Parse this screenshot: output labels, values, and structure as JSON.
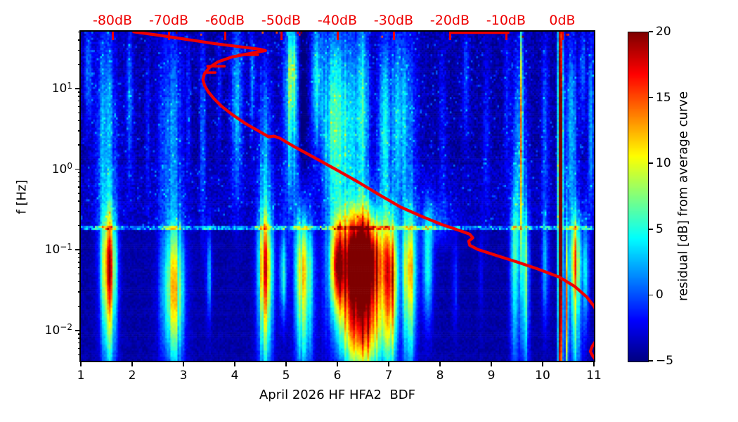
{
  "page": {
    "background": "#ffffff"
  },
  "chart_data": {
    "type": "heatmap",
    "title": "",
    "xlabel": "April 2026 HF HFA2  BDF",
    "ylabel": "f [Hz]",
    "x_range": [
      1,
      11
    ],
    "x_ticks": [
      {
        "v": 1,
        "label": "1"
      },
      {
        "v": 2,
        "label": "2"
      },
      {
        "v": 3,
        "label": "3"
      },
      {
        "v": 4,
        "label": "4"
      },
      {
        "v": 5,
        "label": "5"
      },
      {
        "v": 6,
        "label": "6"
      },
      {
        "v": 7,
        "label": "7"
      },
      {
        "v": 8,
        "label": "8"
      },
      {
        "v": 9,
        "label": "9"
      },
      {
        "v": 10,
        "label": "10"
      },
      {
        "v": 11,
        "label": "11"
      }
    ],
    "y_scale": "log",
    "y_range": [
      0.0042,
      50.8
    ],
    "y_ticks": [
      {
        "f": 10,
        "exp": "1"
      },
      {
        "f": 1,
        "exp": "0"
      },
      {
        "f": 0.1,
        "exp": "−1"
      },
      {
        "f": 0.01,
        "exp": "−2"
      }
    ],
    "grid": false,
    "legend": false,
    "top_axis": {
      "color": "#ee0000",
      "range_db": [
        -85.63,
        5.63
      ],
      "ticks": [
        {
          "v": -80,
          "label": "-80dB"
        },
        {
          "v": -70,
          "label": "-70dB"
        },
        {
          "v": -60,
          "label": "-60dB"
        },
        {
          "v": -50,
          "label": "-50dB"
        },
        {
          "v": -40,
          "label": "-40dB"
        },
        {
          "v": -30,
          "label": "-30dB"
        },
        {
          "v": -20,
          "label": "-20dB"
        },
        {
          "v": -10,
          "label": "-10dB"
        },
        {
          "v": 0,
          "label": "0dB"
        }
      ]
    },
    "colorbar": {
      "label": "residual [dB] from average curve",
      "min": -5,
      "max": 20,
      "colormap": "jet",
      "ticks": [
        {
          "v": 20,
          "label": "20"
        },
        {
          "v": 15,
          "label": "15"
        },
        {
          "v": 10,
          "label": "10"
        },
        {
          "v": 5,
          "label": "5"
        },
        {
          "v": 0,
          "label": "0"
        },
        {
          "v": -5,
          "label": "−5"
        }
      ]
    },
    "heatmap": {
      "seed": 42,
      "nx": 292,
      "ny": 161,
      "base": -4.0,
      "upper_lift": 0.6,
      "hline": {
        "logf": -0.72,
        "halfwidth": 0.026,
        "amp": 4.5,
        "noise": 7
      },
      "noise_upper": 2.4,
      "noise_lower": 1.3,
      "speckle_prob": 0.035,
      "speckle_amp": 3.2,
      "top_dot_prob": 0.012,
      "features": [
        [
          1.15,
          0.05,
          1.2,
          0.5,
          5
        ],
        [
          1.5,
          0.13,
          0.45,
          0.95,
          7
        ],
        [
          1.95,
          0.06,
          0.9,
          0.7,
          4.5
        ],
        [
          2.3,
          0.03,
          0.6,
          0.7,
          3
        ],
        [
          2.75,
          0.16,
          0.5,
          0.9,
          5.5
        ],
        [
          3.1,
          0.03,
          0.8,
          0.6,
          3.5
        ],
        [
          3.38,
          0.04,
          0.5,
          0.9,
          4.5
        ],
        [
          3.7,
          0.03,
          0.9,
          0.5,
          3
        ],
        [
          4.05,
          0.09,
          0.8,
          0.8,
          5.5
        ],
        [
          4.35,
          0.04,
          1.1,
          0.5,
          4.5
        ],
        [
          4.6,
          0.1,
          0.2,
          0.8,
          5.5
        ],
        [
          5.1,
          0.1,
          0.8,
          0.9,
          9
        ],
        [
          5.12,
          0.05,
          1.25,
          0.35,
          5
        ],
        [
          5.32,
          0.05,
          0.9,
          0.7,
          -3
        ],
        [
          5.6,
          0.07,
          1.1,
          0.6,
          9
        ],
        [
          5.9,
          0.12,
          0.6,
          0.9,
          7
        ],
        [
          6.2,
          0.25,
          0.5,
          0.9,
          7.5
        ],
        [
          6.5,
          0.08,
          0.8,
          0.9,
          6
        ],
        [
          6.9,
          0.08,
          0.5,
          0.8,
          6.5
        ],
        [
          7.25,
          0.18,
          0.6,
          0.85,
          7
        ],
        [
          7.9,
          0.25,
          -0.65,
          0.2,
          3
        ],
        [
          8.05,
          0.05,
          0.5,
          0.8,
          2.5
        ],
        [
          8.5,
          0.05,
          1.1,
          0.5,
          3.5
        ],
        [
          8.9,
          0.05,
          0.4,
          0.7,
          2.5
        ],
        [
          9.3,
          0.04,
          0.9,
          0.7,
          3
        ],
        [
          9.55,
          0.1,
          0.3,
          0.9,
          5.5
        ],
        [
          9.59,
          0.013,
          0.55,
          1.1,
          24
        ],
        [
          10.05,
          0.05,
          0.6,
          0.8,
          4
        ],
        [
          10.35,
          0.03,
          -0.3,
          2.6,
          34
        ],
        [
          10.55,
          0.09,
          0.5,
          0.85,
          6
        ],
        [
          10.78,
          0.04,
          1.2,
          0.45,
          4.5
        ],
        [
          10.95,
          0.05,
          0.6,
          0.8,
          5
        ],
        [
          1.55,
          0.1,
          -1.15,
          0.45,
          18
        ],
        [
          1.55,
          0.1,
          -2.0,
          0.5,
          9
        ],
        [
          2.8,
          0.15,
          -1.3,
          0.5,
          11
        ],
        [
          2.8,
          0.15,
          -2.0,
          0.5,
          7
        ],
        [
          3.5,
          0.04,
          -1.3,
          0.4,
          6
        ],
        [
          4.6,
          0.1,
          -1.15,
          0.45,
          16
        ],
        [
          4.6,
          0.1,
          -2.0,
          0.5,
          9
        ],
        [
          4.95,
          0.05,
          -1.3,
          0.4,
          8
        ],
        [
          5.35,
          0.12,
          -1.15,
          0.45,
          13
        ],
        [
          5.35,
          0.12,
          -2.0,
          0.5,
          8
        ],
        [
          6.0,
          0.1,
          -1.2,
          0.4,
          14
        ],
        [
          6.5,
          0.28,
          -1.05,
          0.38,
          24
        ],
        [
          6.5,
          0.35,
          -1.55,
          0.5,
          15
        ],
        [
          6.5,
          0.3,
          -2.1,
          0.4,
          12
        ],
        [
          7.05,
          0.07,
          -1.2,
          0.45,
          12
        ],
        [
          7.05,
          0.07,
          -2.0,
          0.5,
          7
        ],
        [
          7.4,
          0.09,
          -1.15,
          0.45,
          13
        ],
        [
          7.4,
          0.09,
          -2.0,
          0.5,
          7
        ],
        [
          7.75,
          0.08,
          -1.2,
          0.5,
          8
        ],
        [
          8.3,
          0.04,
          -1.4,
          0.4,
          3
        ],
        [
          8.8,
          0.03,
          -1.3,
          0.4,
          2.5
        ],
        [
          9.45,
          0.06,
          -1.0,
          0.5,
          8
        ],
        [
          9.45,
          0.06,
          -2.0,
          0.5,
          5
        ],
        [
          9.65,
          0.06,
          -1.1,
          0.5,
          9
        ],
        [
          9.65,
          0.06,
          -2.0,
          0.5,
          6
        ],
        [
          10.05,
          0.05,
          -1.2,
          0.5,
          6
        ],
        [
          10.47,
          0.02,
          -1.7,
          0.7,
          22
        ],
        [
          10.65,
          0.08,
          -1.1,
          0.4,
          14
        ],
        [
          10.65,
          0.08,
          -2.0,
          0.5,
          8
        ],
        [
          10.85,
          0.04,
          -1.3,
          0.5,
          7
        ]
      ]
    },
    "average_curve": {
      "color": "#ee0000",
      "width": 4.2,
      "points": [
        [
          2.03,
          50.5
        ],
        [
          2.51,
          45.9
        ],
        [
          3.06,
          40.7
        ],
        [
          3.6,
          36.2
        ],
        [
          4.15,
          32.7
        ],
        [
          4.49,
          30.8
        ],
        [
          4.6,
          29.6
        ],
        [
          4.29,
          27.2
        ],
        [
          3.95,
          24.7
        ],
        [
          3.67,
          21.4
        ],
        [
          3.51,
          18.3
        ],
        [
          3.41,
          15.3
        ],
        [
          3.38,
          12.9
        ],
        [
          3.41,
          11.0
        ],
        [
          3.48,
          9.2
        ],
        [
          3.59,
          7.55
        ],
        [
          3.74,
          6.06
        ],
        [
          3.95,
          4.76
        ],
        [
          4.21,
          3.68
        ],
        [
          4.52,
          2.84
        ],
        [
          4.66,
          2.52
        ],
        [
          4.77,
          2.57
        ],
        [
          4.88,
          2.42
        ],
        [
          5.18,
          1.87
        ],
        [
          5.59,
          1.35
        ],
        [
          6.0,
          0.97
        ],
        [
          6.41,
          0.69
        ],
        [
          6.82,
          0.48
        ],
        [
          7.23,
          0.34
        ],
        [
          7.64,
          0.26
        ],
        [
          8.06,
          0.203
        ],
        [
          8.4,
          0.172
        ],
        [
          8.58,
          0.156
        ],
        [
          8.64,
          0.141
        ],
        [
          8.56,
          0.128
        ],
        [
          8.58,
          0.114
        ],
        [
          8.74,
          0.101
        ],
        [
          9.08,
          0.086
        ],
        [
          9.49,
          0.071
        ],
        [
          9.9,
          0.058
        ],
        [
          10.32,
          0.046
        ],
        [
          10.63,
          0.035
        ],
        [
          10.86,
          0.026
        ],
        [
          11.0,
          0.02
        ],
        [
          11.08,
          0.016
        ]
      ],
      "spikes": [
        [
          [
            4.08,
            26.2
          ],
          [
            4.45,
            26.2
          ]
        ],
        [
          [
            3.47,
            18.9
          ],
          [
            3.8,
            18.9
          ]
        ],
        [
          [
            3.42,
            15.8
          ],
          [
            3.62,
            15.8
          ]
        ],
        [
          [
            8.23,
            49.3
          ],
          [
            9.33,
            49.3
          ]
        ]
      ],
      "tail": [
        [
          11.07,
          0.008
        ],
        [
          10.97,
          0.0064
        ],
        [
          10.93,
          0.0055
        ],
        [
          10.98,
          0.0048
        ],
        [
          11.04,
          0.0043
        ]
      ]
    }
  }
}
